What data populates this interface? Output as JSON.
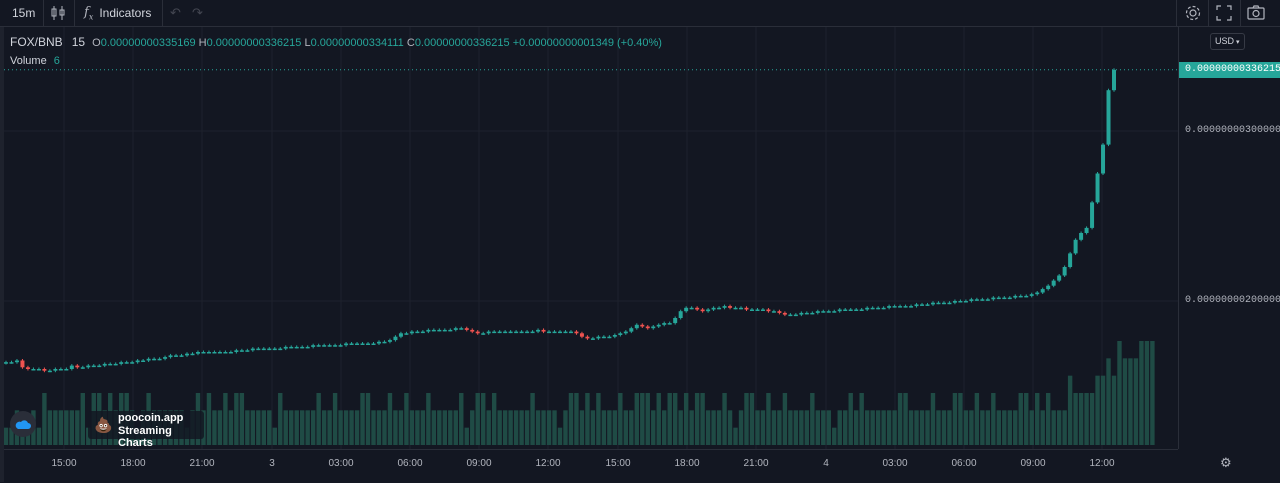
{
  "toolbar": {
    "interval": "15m",
    "indicators_label": "Indicators",
    "icons": [
      "candles-icon",
      "fx-icon",
      "undo-icon",
      "redo-icon",
      "settings-icon",
      "fullscreen-icon",
      "camera-icon"
    ]
  },
  "legend": {
    "symbol": "FOX/BNB",
    "interval": "15",
    "open_label": "O",
    "open": "0.00000000335169",
    "high_label": "H",
    "high": "0.00000000336215",
    "low_label": "L",
    "low": "0.00000000334111",
    "close_label": "C",
    "close": "0.00000000336215",
    "change": "+0.00000000001349 (+0.40%)",
    "volume_label": "Volume",
    "volume": "6"
  },
  "currency_button": "USD",
  "current_price_tag": "0.00000000336215",
  "watermark": {
    "line1": "poocoin.app",
    "line2": "Streaming Charts"
  },
  "colors": {
    "up": "#26a69a",
    "down": "#ef5350",
    "background": "#131722",
    "grid": "#1e222d",
    "volume": "#1f4b45"
  },
  "chart_data": {
    "type": "candlestick",
    "y_ticks": [
      "0.00000000300000",
      "0.00000000200000"
    ],
    "x_ticks": [
      "15:00",
      "18:00",
      "21:00",
      "3",
      "03:00",
      "06:00",
      "09:00",
      "12:00",
      "15:00",
      "18:00",
      "21:00",
      "4",
      "03:00",
      "06:00",
      "09:00",
      "12:00"
    ],
    "close_series_e9": [
      1.64,
      1.64,
      1.65,
      1.61,
      1.6,
      1.6,
      1.6,
      1.59,
      1.59,
      1.6,
      1.6,
      1.6,
      1.62,
      1.61,
      1.61,
      1.62,
      1.62,
      1.62,
      1.63,
      1.63,
      1.63,
      1.64,
      1.64,
      1.64,
      1.65,
      1.65,
      1.66,
      1.66,
      1.66,
      1.67,
      1.68,
      1.68,
      1.68,
      1.69,
      1.69,
      1.7,
      1.7,
      1.7,
      1.7,
      1.7,
      1.7,
      1.7,
      1.71,
      1.71,
      1.71,
      1.72,
      1.72,
      1.72,
      1.72,
      1.72,
      1.72,
      1.73,
      1.73,
      1.73,
      1.73,
      1.73,
      1.74,
      1.74,
      1.74,
      1.74,
      1.74,
      1.74,
      1.75,
      1.75,
      1.75,
      1.75,
      1.75,
      1.75,
      1.76,
      1.76,
      1.77,
      1.79,
      1.81,
      1.81,
      1.82,
      1.82,
      1.82,
      1.83,
      1.83,
      1.83,
      1.83,
      1.83,
      1.84,
      1.84,
      1.83,
      1.82,
      1.81,
      1.81,
      1.82,
      1.82,
      1.82,
      1.82,
      1.82,
      1.82,
      1.82,
      1.82,
      1.82,
      1.83,
      1.82,
      1.82,
      1.82,
      1.82,
      1.82,
      1.82,
      1.81,
      1.79,
      1.78,
      1.78,
      1.79,
      1.79,
      1.79,
      1.8,
      1.81,
      1.82,
      1.84,
      1.86,
      1.85,
      1.84,
      1.85,
      1.86,
      1.87,
      1.87,
      1.9,
      1.94,
      1.96,
      1.96,
      1.95,
      1.94,
      1.95,
      1.96,
      1.96,
      1.97,
      1.96,
      1.96,
      1.96,
      1.95,
      1.95,
      1.95,
      1.95,
      1.94,
      1.94,
      1.93,
      1.92,
      1.92,
      1.92,
      1.93,
      1.93,
      1.93,
      1.94,
      1.94,
      1.94,
      1.94,
      1.95,
      1.95,
      1.95,
      1.95,
      1.95,
      1.96,
      1.96,
      1.96,
      1.96,
      1.97,
      1.97,
      1.97,
      1.97,
      1.97,
      1.98,
      1.98,
      1.98,
      1.99,
      1.99,
      1.99,
      1.99,
      2.0,
      2.0,
      2.0,
      2.01,
      2.01,
      2.01,
      2.01,
      2.02,
      2.02,
      2.02,
      2.02,
      2.03,
      2.03,
      2.03,
      2.04,
      2.05,
      2.07,
      2.09,
      2.12,
      2.15,
      2.2,
      2.28,
      2.36,
      2.4,
      2.43,
      2.58,
      2.75,
      2.92,
      3.24,
      3.36
    ],
    "volume_series": [
      1,
      1,
      2,
      1,
      1,
      2,
      1,
      3,
      2,
      2,
      2,
      2,
      2,
      2,
      3,
      1,
      3,
      3,
      2,
      3,
      2,
      3,
      3,
      2,
      1,
      2,
      3,
      2,
      2,
      2,
      2,
      2,
      2,
      1,
      2,
      3,
      2,
      3,
      2,
      2,
      3,
      2,
      3,
      3,
      2,
      2,
      2,
      2,
      2,
      1,
      3,
      2,
      2,
      2,
      2,
      2,
      2,
      3,
      2,
      2,
      3,
      2,
      2,
      2,
      2,
      3,
      3,
      2,
      2,
      2,
      3,
      2,
      2,
      3,
      2,
      2,
      2,
      3,
      2,
      2,
      2,
      2,
      2,
      3,
      1,
      2,
      3,
      3,
      2,
      3,
      2,
      2,
      2,
      2,
      2,
      2,
      3,
      2,
      2,
      2,
      2,
      1,
      2,
      3,
      3,
      2,
      3,
      2,
      3,
      2,
      2,
      2,
      3,
      2,
      2,
      3,
      3,
      3,
      2,
      3,
      2,
      3,
      3,
      2,
      3,
      2,
      3,
      3,
      2,
      2,
      2,
      3,
      2,
      1,
      2,
      3,
      3,
      2,
      2,
      3,
      2,
      2,
      3,
      2,
      2,
      2,
      2,
      3,
      2,
      2,
      2,
      1,
      2,
      2,
      3,
      2,
      3,
      2,
      2,
      2,
      2,
      2,
      2,
      3,
      3,
      2,
      2,
      2,
      2,
      3,
      2,
      2,
      2,
      3,
      3,
      2,
      2,
      3,
      2,
      2,
      3,
      2,
      2,
      2,
      2,
      3,
      3,
      2,
      3,
      2,
      3,
      2,
      2,
      2,
      4,
      3,
      3,
      3,
      3,
      4,
      4,
      5,
      4,
      6,
      5,
      5,
      5,
      6,
      6,
      6
    ]
  }
}
